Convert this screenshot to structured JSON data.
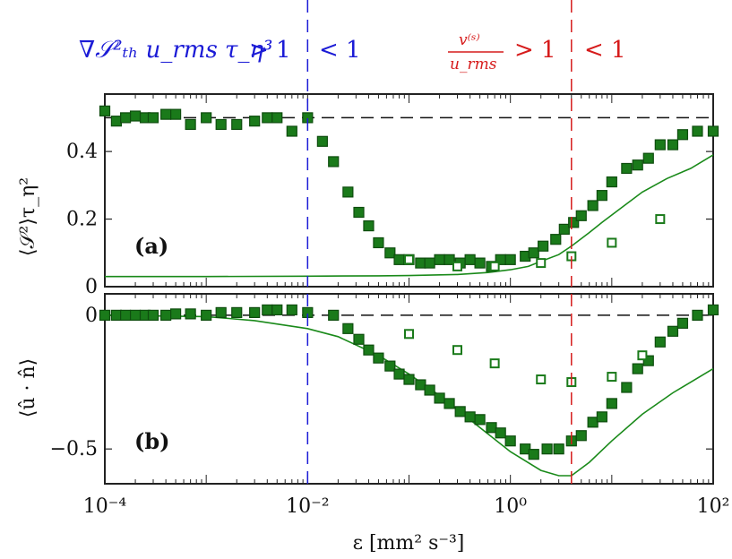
{
  "header": {
    "blue_expression": "∇𝒮²ₜₕ u_rms τ_η³",
    "blue_gt": "> 1",
    "blue_lt": "< 1",
    "red_numerator": "v⁽ˢ⁾",
    "red_denominator": "u_rms",
    "red_gt": "> 1",
    "red_lt": "< 1",
    "blue_color": "#1b1bd6",
    "red_color": "#d61b1b"
  },
  "chart_data": [
    {
      "type": "scatter",
      "panel_label": "(a)",
      "ylabel": "⟨𝒮²⟩τ_η²",
      "xlabel": "ε [mm² s⁻³]",
      "xscale": "log",
      "xlim": [
        0.0001,
        100
      ],
      "ylim": [
        0,
        0.57
      ],
      "yticks": [
        0,
        0.2,
        0.4
      ],
      "ytick_labels": [
        "0",
        "0.2",
        "0.4"
      ],
      "reference_line_y": 0.5,
      "vertical_lines": [
        {
          "x": 0.01,
          "color": "#1b1bd6"
        },
        {
          "x": 4,
          "color": "#d61b1b"
        }
      ],
      "series": [
        {
          "style": "filled-square",
          "color": "#1a7a1a",
          "x": [
            0.0001,
            0.00013,
            0.00016,
            0.0002,
            0.00025,
            0.0003,
            0.0004,
            0.0005,
            0.0007,
            0.001,
            0.0014,
            0.002,
            0.003,
            0.004,
            0.005,
            0.007,
            0.01,
            0.014,
            0.018,
            0.025,
            0.032,
            0.04,
            0.05,
            0.065,
            0.08,
            0.1,
            0.13,
            0.16,
            0.2,
            0.25,
            0.32,
            0.4,
            0.5,
            0.65,
            0.8,
            1.0,
            1.4,
            1.7,
            2.1,
            2.8,
            3.4,
            4.2,
            5.0,
            6.5,
            8.0,
            10,
            14,
            18,
            23,
            30,
            40,
            50,
            70,
            100
          ],
          "y": [
            0.52,
            0.49,
            0.5,
            0.505,
            0.5,
            0.5,
            0.51,
            0.51,
            0.48,
            0.5,
            0.48,
            0.48,
            0.49,
            0.5,
            0.5,
            0.46,
            0.5,
            0.43,
            0.37,
            0.28,
            0.22,
            0.18,
            0.13,
            0.1,
            0.08,
            0.08,
            0.07,
            0.07,
            0.08,
            0.08,
            0.07,
            0.08,
            0.07,
            0.06,
            0.08,
            0.08,
            0.09,
            0.1,
            0.12,
            0.14,
            0.17,
            0.19,
            0.21,
            0.24,
            0.27,
            0.31,
            0.35,
            0.36,
            0.38,
            0.42,
            0.42,
            0.45,
            0.46,
            0.46
          ]
        },
        {
          "style": "open-square",
          "color": "#1a7a1a",
          "x": [
            0.1,
            0.3,
            0.7,
            2.0,
            4.0,
            10,
            30
          ],
          "y": [
            0.08,
            0.06,
            0.06,
            0.07,
            0.09,
            0.13,
            0.2
          ]
        },
        {
          "style": "line",
          "color": "#1a8a1a",
          "x": [
            0.0001,
            0.001,
            0.01,
            0.05,
            0.1,
            0.3,
            0.6,
            1.0,
            1.5,
            2.0,
            3.0,
            4.0,
            6.0,
            8.0,
            12,
            20,
            35,
            60,
            100
          ],
          "y": [
            0.03,
            0.03,
            0.031,
            0.032,
            0.033,
            0.036,
            0.042,
            0.05,
            0.06,
            0.075,
            0.095,
            0.12,
            0.16,
            0.19,
            0.23,
            0.28,
            0.32,
            0.35,
            0.39
          ]
        }
      ]
    },
    {
      "type": "scatter",
      "panel_label": "(b)",
      "ylabel": "⟨û · n̂⟩",
      "xlabel": "ε [mm² s⁻³]",
      "xscale": "log",
      "xlim": [
        0.0001,
        100
      ],
      "ylim": [
        -0.63,
        0.08
      ],
      "yticks": [
        0,
        -0.5
      ],
      "ytick_labels": [
        "0",
        "−0.5"
      ],
      "xticks": [
        0.0001,
        0.01,
        1,
        100
      ],
      "xtick_labels": [
        "10⁻⁴",
        "10⁻²",
        "10⁰",
        "10²"
      ],
      "reference_line_y": 0,
      "vertical_lines": [
        {
          "x": 0.01,
          "color": "#1b1bd6"
        },
        {
          "x": 4,
          "color": "#d61b1b"
        }
      ],
      "series": [
        {
          "style": "filled-square",
          "color": "#1a7a1a",
          "x": [
            0.0001,
            0.00013,
            0.00016,
            0.0002,
            0.00025,
            0.0003,
            0.0004,
            0.0005,
            0.0007,
            0.001,
            0.0014,
            0.002,
            0.003,
            0.004,
            0.005,
            0.007,
            0.01,
            0.018,
            0.025,
            0.032,
            0.04,
            0.05,
            0.065,
            0.08,
            0.1,
            0.13,
            0.16,
            0.2,
            0.25,
            0.32,
            0.4,
            0.5,
            0.65,
            0.8,
            1.0,
            1.4,
            1.7,
            2.3,
            3.0,
            4.0,
            5.0,
            6.5,
            8.0,
            10,
            14,
            18,
            23,
            30,
            40,
            50,
            70,
            100
          ],
          "y": [
            0.0,
            0.0,
            0.0,
            0.0,
            0.0,
            0.0,
            0.0,
            0.005,
            0.005,
            0.0,
            0.01,
            0.01,
            0.01,
            0.02,
            0.02,
            0.02,
            0.01,
            0.0,
            -0.05,
            -0.09,
            -0.13,
            -0.16,
            -0.19,
            -0.22,
            -0.24,
            -0.26,
            -0.28,
            -0.31,
            -0.33,
            -0.36,
            -0.38,
            -0.39,
            -0.42,
            -0.44,
            -0.47,
            -0.5,
            -0.52,
            -0.5,
            -0.5,
            -0.47,
            -0.45,
            -0.4,
            -0.38,
            -0.33,
            -0.27,
            -0.2,
            -0.17,
            -0.1,
            -0.06,
            -0.03,
            0.0,
            0.02
          ]
        },
        {
          "style": "open-square",
          "color": "#1a7a1a",
          "x": [
            0.1,
            0.3,
            0.7,
            2.0,
            4.0,
            10,
            20
          ],
          "y": [
            -0.07,
            -0.13,
            -0.18,
            -0.24,
            -0.25,
            -0.23,
            -0.15
          ]
        },
        {
          "style": "line",
          "color": "#1a8a1a",
          "x": [
            0.0001,
            0.001,
            0.003,
            0.01,
            0.02,
            0.05,
            0.1,
            0.2,
            0.5,
            1.0,
            2.0,
            3.0,
            4.0,
            6.0,
            10,
            20,
            40,
            100
          ],
          "y": [
            0.0,
            -0.005,
            -0.02,
            -0.05,
            -0.08,
            -0.15,
            -0.22,
            -0.3,
            -0.42,
            -0.51,
            -0.58,
            -0.6,
            -0.6,
            -0.55,
            -0.47,
            -0.37,
            -0.29,
            -0.2
          ]
        }
      ]
    }
  ]
}
